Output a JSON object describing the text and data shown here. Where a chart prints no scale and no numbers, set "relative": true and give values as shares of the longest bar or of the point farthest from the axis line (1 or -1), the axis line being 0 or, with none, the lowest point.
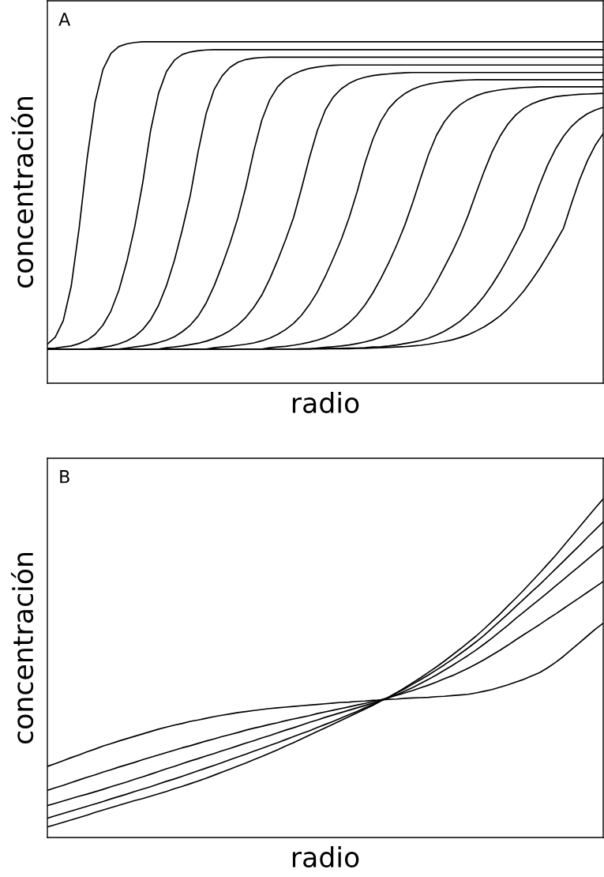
{
  "chart_data": [
    {
      "type": "line",
      "relative": true,
      "xlabel": "radio",
      "ylabel": "concentración",
      "annotations": [
        "A"
      ],
      "marker": "none",
      "line_style": "solid",
      "categories": [
        null,
        null,
        null,
        null,
        null,
        null,
        null,
        null,
        null,
        null,
        null,
        null,
        null,
        null,
        null,
        null,
        null,
        null,
        null,
        null,
        null,
        null,
        null,
        null,
        null,
        null,
        null,
        null,
        null,
        null,
        null,
        null,
        null,
        null,
        null,
        null,
        null,
        null,
        null,
        null,
        null,
        null,
        null,
        null,
        null,
        null,
        null,
        null,
        null,
        null,
        null,
        null,
        null,
        null,
        null,
        null,
        null,
        null,
        null,
        null,
        null,
        null,
        null,
        null,
        null,
        null,
        null,
        null,
        null,
        null,
        null
      ],
      "series": [
        {
          "color": "#000000",
          "values": [
            0.114,
            0.135,
            0.183,
            0.284,
            0.454,
            0.657,
            0.822,
            0.919,
            0.966,
            0.986,
            0.994,
            0.998,
            1,
            1,
            1,
            1,
            1,
            1,
            1,
            1,
            1,
            1,
            1,
            1,
            1,
            1,
            1,
            1,
            1,
            1,
            1,
            1,
            1,
            1,
            1,
            1,
            1,
            1,
            1,
            1,
            1,
            1,
            1,
            1,
            1,
            1,
            1,
            1,
            1,
            1,
            1,
            1,
            1,
            1,
            1,
            1,
            1,
            1,
            1,
            1,
            1,
            1,
            1,
            1,
            1,
            1,
            1,
            1,
            1,
            1,
            1
          ]
        },
        {
          "color": "#000000",
          "values": [
            0.102,
            0.103,
            0.106,
            0.109,
            0.116,
            0.126,
            0.143,
            0.17,
            0.211,
            0.272,
            0.355,
            0.458,
            0.586,
            0.74,
            0.849,
            0.913,
            0.946,
            0.963,
            0.97,
            0.974,
            0.976,
            0.977,
            0.977,
            0.977,
            0.977,
            0.977,
            0.977,
            0.977,
            0.977,
            0.977,
            0.977,
            0.977,
            0.977,
            0.977,
            0.977,
            0.977,
            0.977,
            0.977,
            0.977,
            0.977,
            0.977,
            0.977,
            0.977,
            0.977,
            0.977,
            0.977,
            0.977,
            0.977,
            0.977,
            0.977,
            0.977,
            0.977,
            0.977,
            0.977,
            0.977,
            0.977,
            0.977,
            0.977,
            0.977,
            0.977,
            0.977,
            0.977,
            0.977,
            0.977,
            0.977,
            0.977,
            0.977,
            0.977,
            0.977,
            0.977,
            0.977
          ]
        },
        {
          "color": "#000000",
          "values": [
            0.1,
            0.1,
            0.1,
            0.1,
            0.1,
            0.1,
            0.102,
            0.105,
            0.109,
            0.115,
            0.124,
            0.137,
            0.157,
            0.186,
            0.228,
            0.286,
            0.36,
            0.45,
            0.55,
            0.68,
            0.79,
            0.86,
            0.9,
            0.925,
            0.94,
            0.948,
            0.952,
            0.954,
            0.955,
            0.955,
            0.955,
            0.955,
            0.955,
            0.955,
            0.955,
            0.955,
            0.955,
            0.955,
            0.955,
            0.955,
            0.955,
            0.955,
            0.955,
            0.955,
            0.955,
            0.955,
            0.955,
            0.955,
            0.955,
            0.955,
            0.955,
            0.955,
            0.955,
            0.955,
            0.955,
            0.955,
            0.955,
            0.955,
            0.955,
            0.955,
            0.955,
            0.955,
            0.955,
            0.955,
            0.955,
            0.955,
            0.955,
            0.955,
            0.955,
            0.955,
            0.955
          ]
        },
        {
          "color": "#000000",
          "values": [
            0.1,
            0.1,
            0.1,
            0.1,
            0.1,
            0.1,
            0.1,
            0.1,
            0.1,
            0.1,
            0.103,
            0.106,
            0.109,
            0.113,
            0.119,
            0.126,
            0.136,
            0.151,
            0.17,
            0.197,
            0.235,
            0.285,
            0.345,
            0.41,
            0.485,
            0.575,
            0.68,
            0.77,
            0.83,
            0.868,
            0.891,
            0.905,
            0.915,
            0.922,
            0.926,
            0.929,
            0.931,
            0.932,
            0.932,
            0.932,
            0.932,
            0.932,
            0.932,
            0.932,
            0.932,
            0.932,
            0.932,
            0.932,
            0.932,
            0.932,
            0.932,
            0.932,
            0.932,
            0.932,
            0.932,
            0.932,
            0.932,
            0.932,
            0.932,
            0.932,
            0.932,
            0.932,
            0.932,
            0.932,
            0.932,
            0.932,
            0.932,
            0.932,
            0.932,
            0.932,
            0.932
          ]
        },
        {
          "color": "#000000",
          "values": [
            0.1,
            0.1,
            0.1,
            0.1,
            0.1,
            0.1,
            0.1,
            0.1,
            0.1,
            0.1,
            0.1,
            0.1,
            0.1,
            0.1,
            0.1,
            0.104,
            0.106,
            0.109,
            0.113,
            0.117,
            0.123,
            0.131,
            0.141,
            0.154,
            0.171,
            0.193,
            0.222,
            0.258,
            0.305,
            0.36,
            0.42,
            0.485,
            0.57,
            0.66,
            0.74,
            0.8,
            0.838,
            0.862,
            0.878,
            0.889,
            0.896,
            0.901,
            0.904,
            0.906,
            0.908,
            0.909,
            0.91,
            0.91,
            0.91,
            0.91,
            0.91,
            0.91,
            0.91,
            0.91,
            0.91,
            0.91,
            0.91,
            0.91,
            0.91,
            0.91,
            0.91,
            0.91,
            0.91,
            0.91,
            0.91,
            0.91,
            0.91,
            0.91,
            0.91,
            0.91,
            0.91
          ]
        },
        {
          "color": "#000000",
          "values": [
            0.1,
            0.1,
            0.1,
            0.1,
            0.1,
            0.1,
            0.1,
            0.1,
            0.1,
            0.1,
            0.1,
            0.1,
            0.1,
            0.1,
            0.1,
            0.1,
            0.1,
            0.1,
            0.1,
            0.1,
            0.1,
            0.104,
            0.106,
            0.108,
            0.111,
            0.114,
            0.118,
            0.124,
            0.132,
            0.143,
            0.157,
            0.175,
            0.199,
            0.23,
            0.267,
            0.313,
            0.365,
            0.42,
            0.485,
            0.56,
            0.645,
            0.715,
            0.768,
            0.805,
            0.83,
            0.848,
            0.861,
            0.87,
            0.876,
            0.88,
            0.883,
            0.885,
            0.887,
            0.888,
            0.889,
            0.889,
            0.889,
            0.889,
            0.889,
            0.889,
            0.889,
            0.889,
            0.889,
            0.889,
            0.889,
            0.889,
            0.889,
            0.889,
            0.889,
            0.889,
            0.889
          ]
        },
        {
          "color": "#000000",
          "values": [
            0.1,
            0.1,
            0.1,
            0.1,
            0.1,
            0.1,
            0.1,
            0.1,
            0.1,
            0.1,
            0.1,
            0.1,
            0.1,
            0.1,
            0.1,
            0.1,
            0.1,
            0.1,
            0.1,
            0.1,
            0.1,
            0.1,
            0.1,
            0.1,
            0.1,
            0.1,
            0.1,
            0.1,
            0.104,
            0.106,
            0.108,
            0.111,
            0.115,
            0.12,
            0.126,
            0.134,
            0.145,
            0.159,
            0.177,
            0.2,
            0.229,
            0.265,
            0.307,
            0.353,
            0.405,
            0.462,
            0.528,
            0.6,
            0.67,
            0.726,
            0.766,
            0.795,
            0.816,
            0.831,
            0.842,
            0.85,
            0.855,
            0.859,
            0.862,
            0.864,
            0.866,
            0.867,
            0.868,
            0.868,
            0.868,
            0.868,
            0.868,
            0.868,
            0.868,
            0.868,
            0.868
          ]
        },
        {
          "color": "#000000",
          "values": [
            0.1,
            0.1,
            0.1,
            0.1,
            0.1,
            0.1,
            0.1,
            0.1,
            0.1,
            0.1,
            0.1,
            0.1,
            0.1,
            0.1,
            0.1,
            0.1,
            0.1,
            0.1,
            0.1,
            0.1,
            0.1,
            0.1,
            0.1,
            0.1,
            0.1,
            0.1,
            0.1,
            0.1,
            0.1,
            0.1,
            0.1,
            0.1,
            0.1,
            0.1,
            0.103,
            0.105,
            0.107,
            0.109,
            0.112,
            0.116,
            0.121,
            0.127,
            0.135,
            0.145,
            0.158,
            0.175,
            0.197,
            0.223,
            0.256,
            0.296,
            0.34,
            0.385,
            0.435,
            0.492,
            0.557,
            0.62,
            0.677,
            0.723,
            0.759,
            0.786,
            0.805,
            0.818,
            0.827,
            0.834,
            0.839,
            0.842,
            0.844,
            0.846,
            0.847,
            0.848,
            0.849
          ]
        },
        {
          "color": "#000000",
          "values": [
            0.1,
            0.1,
            0.1,
            0.1,
            0.1,
            0.1,
            0.1,
            0.1,
            0.1,
            0.1,
            0.1,
            0.1,
            0.1,
            0.1,
            0.1,
            0.1,
            0.1,
            0.1,
            0.1,
            0.1,
            0.1,
            0.1,
            0.1,
            0.1,
            0.1,
            0.1,
            0.1,
            0.1,
            0.1,
            0.1,
            0.1,
            0.1,
            0.101,
            0.101,
            0.101,
            0.101,
            0.102,
            0.102,
            0.103,
            0.103,
            0.104,
            0.106,
            0.107,
            0.109,
            0.112,
            0.116,
            0.12,
            0.125,
            0.132,
            0.141,
            0.152,
            0.166,
            0.182,
            0.203,
            0.227,
            0.255,
            0.288,
            0.325,
            0.366,
            0.41,
            0.455,
            0.519,
            0.582,
            0.639,
            0.686,
            0.723,
            0.752,
            0.773,
            0.789,
            0.8,
            0.808
          ]
        },
        {
          "color": "#000000",
          "values": [
            0.1,
            0.1,
            0.1,
            0.1,
            0.1,
            0.1,
            0.1,
            0.1,
            0.1,
            0.1,
            0.1,
            0.1,
            0.1,
            0.1,
            0.1,
            0.1,
            0.1,
            0.1,
            0.1,
            0.1,
            0.1,
            0.1,
            0.1,
            0.1,
            0.1,
            0.1,
            0.1,
            0.1,
            0.1,
            0.1,
            0.1,
            0.1,
            0.1,
            0.1,
            0.101,
            0.101,
            0.101,
            0.101,
            0.101,
            0.102,
            0.102,
            0.103,
            0.104,
            0.105,
            0.106,
            0.107,
            0.109,
            0.111,
            0.114,
            0.118,
            0.122,
            0.127,
            0.134,
            0.142,
            0.153,
            0.165,
            0.18,
            0.197,
            0.218,
            0.243,
            0.27,
            0.302,
            0.336,
            0.374,
            0.413,
            0.454,
            0.526,
            0.594,
            0.651,
            0.697,
            0.731
          ]
        }
      ]
    },
    {
      "type": "line",
      "relative": true,
      "xlabel": "radio",
      "ylabel": "concentración",
      "annotations": [
        "B"
      ],
      "marker": "none",
      "line_style": "solid",
      "categories": [
        null,
        null,
        null,
        null,
        null,
        null,
        null,
        null,
        null,
        null,
        null,
        null,
        null,
        null,
        null,
        null,
        null,
        null,
        null,
        null,
        null,
        null,
        null,
        null,
        null,
        null,
        null,
        null,
        null,
        null,
        null,
        null,
        null,
        null,
        null,
        null,
        null,
        null,
        null,
        null,
        null,
        null,
        null,
        null,
        null,
        null,
        null,
        null,
        null,
        null,
        null,
        null,
        null,
        null,
        null,
        null,
        null,
        null,
        null,
        null,
        null,
        null,
        null,
        null,
        null,
        null,
        null,
        null,
        null,
        null,
        null
      ],
      "series": [
        {
          "color": "#000000",
          "values": [
            0.21,
            0.218,
            0.227,
            0.236,
            0.244,
            0.253,
            0.261,
            0.27,
            0.277,
            0.285,
            0.292,
            0.299,
            0.306,
            0.313,
            0.32,
            0.326,
            0.332,
            0.337,
            0.343,
            0.347,
            0.352,
            0.357,
            0.361,
            0.365,
            0.369,
            0.372,
            0.375,
            0.378,
            0.381,
            0.383,
            0.385,
            0.387,
            0.389,
            0.391,
            0.393,
            0.395,
            0.397,
            0.399,
            0.4,
            0.402,
            0.403,
            0.405,
            0.406,
            0.408,
            0.409,
            0.411,
            0.412,
            0.413,
            0.414,
            0.416,
            0.417,
            0.419,
            0.421,
            0.423,
            0.427,
            0.432,
            0.437,
            0.444,
            0.451,
            0.459,
            0.467,
            0.477,
            0.487,
            0.501,
            0.517,
            0.535,
            0.555,
            0.575,
            0.595,
            0.615,
            0.633
          ]
        },
        {
          "color": "#000000",
          "values": [
            0.139,
            0.147,
            0.154,
            0.162,
            0.17,
            0.178,
            0.185,
            0.193,
            0.2,
            0.208,
            0.215,
            0.222,
            0.23,
            0.237,
            0.244,
            0.251,
            0.258,
            0.265,
            0.271,
            0.278,
            0.285,
            0.291,
            0.298,
            0.304,
            0.31,
            0.317,
            0.323,
            0.328,
            0.334,
            0.339,
            0.345,
            0.35,
            0.355,
            0.36,
            0.366,
            0.371,
            0.376,
            0.381,
            0.386,
            0.391,
            0.396,
            0.402,
            0.407,
            0.413,
            0.42,
            0.427,
            0.434,
            0.442,
            0.45,
            0.459,
            0.469,
            0.478,
            0.489,
            0.5,
            0.512,
            0.525,
            0.539,
            0.553,
            0.568,
            0.584,
            0.599,
            0.614,
            0.629,
            0.645,
            0.66,
            0.676,
            0.692,
            0.708,
            0.724,
            0.74,
            0.756
          ]
        },
        {
          "color": "#000000",
          "values": [
            0.094,
            0.101,
            0.108,
            0.115,
            0.122,
            0.128,
            0.135,
            0.142,
            0.15,
            0.157,
            0.164,
            0.172,
            0.179,
            0.187,
            0.195,
            0.203,
            0.21,
            0.218,
            0.226,
            0.233,
            0.241,
            0.248,
            0.256,
            0.263,
            0.271,
            0.279,
            0.286,
            0.294,
            0.301,
            0.309,
            0.317,
            0.324,
            0.332,
            0.34,
            0.347,
            0.355,
            0.362,
            0.369,
            0.376,
            0.383,
            0.39,
            0.397,
            0.405,
            0.413,
            0.422,
            0.432,
            0.443,
            0.455,
            0.467,
            0.48,
            0.494,
            0.508,
            0.523,
            0.538,
            0.554,
            0.571,
            0.589,
            0.608,
            0.627,
            0.647,
            0.666,
            0.685,
            0.704,
            0.723,
            0.743,
            0.762,
            0.782,
            0.801,
            0.821,
            0.841,
            0.86
          ]
        },
        {
          "color": "#000000",
          "values": [
            0.057,
            0.064,
            0.071,
            0.078,
            0.085,
            0.092,
            0.099,
            0.106,
            0.114,
            0.121,
            0.128,
            0.136,
            0.143,
            0.15,
            0.158,
            0.166,
            0.173,
            0.181,
            0.189,
            0.197,
            0.205,
            0.213,
            0.221,
            0.23,
            0.238,
            0.246,
            0.255,
            0.263,
            0.272,
            0.28,
            0.289,
            0.298,
            0.307,
            0.315,
            0.325,
            0.334,
            0.343,
            0.353,
            0.363,
            0.372,
            0.383,
            0.393,
            0.404,
            0.415,
            0.427,
            0.439,
            0.453,
            0.466,
            0.48,
            0.495,
            0.51,
            0.526,
            0.543,
            0.56,
            0.578,
            0.597,
            0.618,
            0.639,
            0.66,
            0.682,
            0.704,
            0.726,
            0.747,
            0.77,
            0.793,
            0.816,
            0.839,
            0.862,
            0.886,
            0.909,
            0.932
          ]
        },
        {
          "color": "#000000",
          "values": [
            0.031,
            0.038,
            0.045,
            0.052,
            0.059,
            0.066,
            0.074,
            0.081,
            0.088,
            0.095,
            0.102,
            0.109,
            0.115,
            0.122,
            0.129,
            0.136,
            0.144,
            0.151,
            0.159,
            0.167,
            0.175,
            0.184,
            0.193,
            0.202,
            0.211,
            0.22,
            0.23,
            0.239,
            0.249,
            0.259,
            0.27,
            0.28,
            0.291,
            0.302,
            0.313,
            0.324,
            0.335,
            0.346,
            0.357,
            0.368,
            0.379,
            0.39,
            0.403,
            0.415,
            0.428,
            0.442,
            0.457,
            0.472,
            0.488,
            0.504,
            0.521,
            0.539,
            0.557,
            0.576,
            0.595,
            0.616,
            0.638,
            0.66,
            0.684,
            0.707,
            0.731,
            0.756,
            0.781,
            0.807,
            0.833,
            0.861,
            0.889,
            0.917,
            0.945,
            0.973,
            1.0
          ]
        }
      ]
    }
  ]
}
